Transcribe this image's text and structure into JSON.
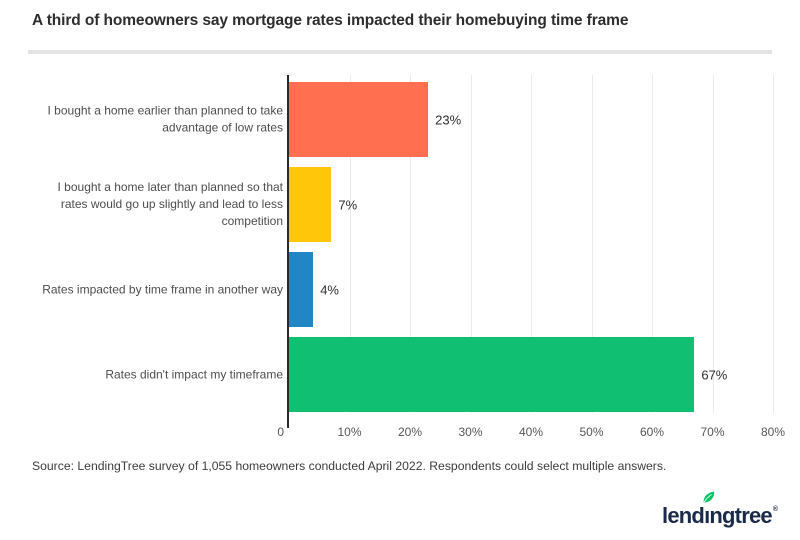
{
  "title": "A third of homeowners say mortgage rates impacted their homebuying time frame",
  "source": "Source: LendingTree survey of 1,055 homeowners conducted April 2022. Respondents could select multiple answers.",
  "logo": {
    "part1": "lend",
    "part2": "ı",
    "part3": "ngtree",
    "registered": "®",
    "full_name": "lendingtree",
    "text_color": "#1A2B49",
    "leaf_color": "#00C264"
  },
  "chart_data": {
    "type": "bar",
    "orientation": "horizontal",
    "title": "A third of homeowners say mortgage rates impacted their homebuying time frame",
    "categories": [
      "I bought a home earlier than planned to take advantage of low rates",
      "I bought a home later than planned so that rates would go up slightly and lead to less competition",
      "Rates impacted by time frame in another way",
      "Rates didn't impact my timeframe"
    ],
    "values": [
      23,
      7,
      4,
      67
    ],
    "value_labels": [
      "23%",
      "7%",
      "4%",
      "67%"
    ],
    "bar_colors": [
      "#FF6F50",
      "#FFC60A",
      "#2386C4",
      "#10BF72"
    ],
    "xlabel": "",
    "ylabel": "",
    "xlim": [
      0,
      80
    ],
    "x_ticks": [
      "0",
      "10%",
      "20%",
      "30%",
      "40%",
      "50%",
      "60%",
      "70%",
      "80%"
    ],
    "grid": true,
    "legend": false
  }
}
